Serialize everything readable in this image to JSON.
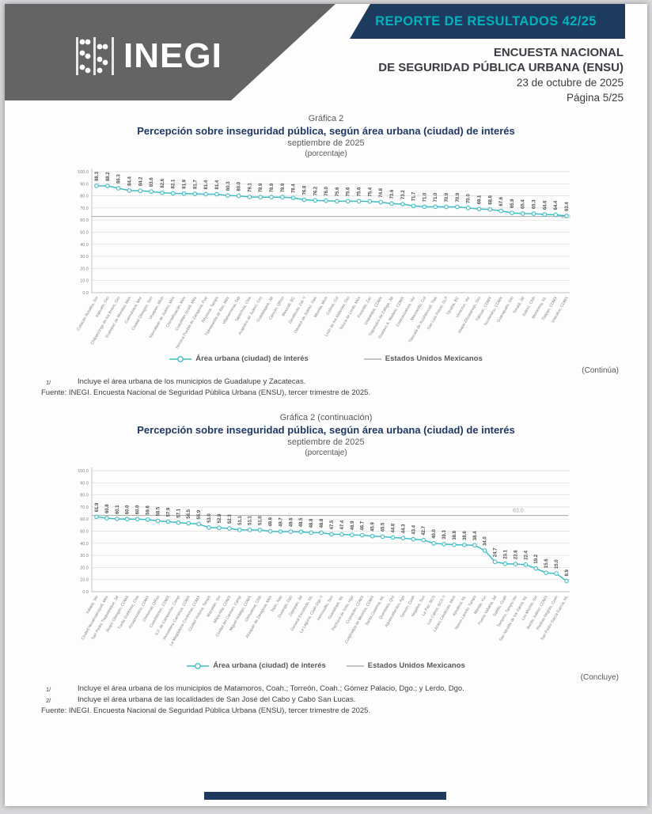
{
  "header": {
    "logo_text": "INEGI",
    "report_banner": "REPORTE DE RESULTADOS 42/25",
    "title_line1": "ENCUESTA NACIONAL",
    "title_line2": "DE SEGURIDAD PÚBLICA URBANA (ENSU)",
    "date": "23 de octubre de 2025",
    "page": "Página 5/25"
  },
  "colors": {
    "banner_bg": "#1d3a5f",
    "banner_text": "#00b2bc",
    "logo_bg": "#646467",
    "title_navy": "#1f3864",
    "series_teal": "#3fbdc5",
    "reference_gray": "#b0b0b0",
    "value_label": "#4d4d4d",
    "axis_label": "#7f7f7f"
  },
  "chart1": {
    "heading": "Gráfica 2",
    "title": "Percepción sobre inseguridad pública, según área urbana (ciudad) de interés",
    "subtitle": "septiembre de 2025",
    "unit_label": "(porcentaje)",
    "legend_series": "Área urbana (ciudad) de interés",
    "legend_reference": "Estados Unidos Mexicanos",
    "continuation_note": "(Continúa)",
    "footnotes": [
      {
        "mark": "1/",
        "text": "Incluye el área urbana de los municipios de Guadalupe y Zacatecas."
      }
    ],
    "source": "Fuente: INEGI. Encuesta Nacional de Seguridad Pública Urbana (ENSU), tercer trimestre de 2025."
  },
  "chart2": {
    "heading": "Gráfica 2 (continuación)",
    "title": "Percepción sobre inseguridad pública, según área urbana (ciudad) de interés",
    "subtitle": "septiembre de 2025",
    "unit_label": "(porcentaje)",
    "legend_series": "Área urbana (ciudad) de interés",
    "legend_reference": "Estados Unidos Mexicanos",
    "continuation_note": "(Concluye)",
    "footnotes": [
      {
        "mark": "1/",
        "text": "Incluye el área urbana de los municipios de Matamoros, Coah.; Torreón, Coah.; Gómez Palacio, Dgo.; y Lerdo, Dgo."
      },
      {
        "mark": "2/",
        "text": "Incluye el área urbana de las localidades de San José del Cabo y Cabo San Lucas."
      }
    ],
    "source": "Fuente: INEGI. Encuesta Nacional de Seguridad Pública Urbana (ENSU), tercer trimestre de 2025."
  },
  "chart_data": [
    {
      "type": "line",
      "title": "Percepción sobre inseguridad pública, según área urbana (ciudad) de interés — septiembre de 2025 (porcentaje), parte 1",
      "ylim": [
        0,
        100
      ],
      "ytick_step": 10,
      "grid": true,
      "legend_position": "bottom",
      "reference": {
        "label": "Estados Unidos Mexicanos",
        "value": 63.0
      },
      "categories": [
        "Culiacán Rosales, Sin",
        "Irapuato, Gto",
        "Chilpancingo de los Bravo, Gro",
        "Ecatepec de Morelos, Méx",
        "Cuernavaca, Mor",
        "Ciudad Obregón, Son",
        "Uruapan, Mich",
        "Naucalpan de Juárez, Méx",
        "Chimalhuacán, Méx",
        "Cuautitlán Izcalli, Méx",
        "Heroica Puebla de Zaragoza, Pue",
        "Reynosa, Tamps",
        "Tlalnepantla de Baz, Méx",
        "Villahermosa, Tab",
        "Tapachula, Chis",
        "Acapulco de Juárez, Gro",
        "Guadalajara, Jal",
        "Cancún, QRoo",
        "Mexicali, BC",
        "Zacatecas, Zac ¹/",
        "Oaxaca de Juárez, Oax",
        "Morelia, Mich",
        "Colima, Col",
        "León de los Aldamas, Gto",
        "Toluca de Lerdo, Méx",
        "Fresnillo, Zac",
        "Iztapalapa, CDMX",
        "Tlajomulco de Zúñiga, Jal",
        "Gustavo A. Madero, CDMX",
        "Coatzacoalcos, Ver",
        "Manzanillo, Col",
        "Tlaxcala de Xicohténcatl, Tlax",
        "San Luis Potosí, SLP",
        "Tijuana, BC",
        "Veracruz, Ver",
        "Ixtapa-Zihuatanejo, Gro",
        "Tláhuac, CDMX",
        "Xochimilco, CDMX",
        "Guanajuato, Gto",
        "Tonalá, Jal",
        "Juárez, Chih",
        "Monterrey, NL",
        "Tlalpan, CDMX",
        "Iztacalco, CDMX"
      ],
      "values": [
        88.3,
        88.2,
        86.3,
        84.4,
        84.2,
        83.6,
        82.6,
        82.1,
        81.9,
        81.7,
        81.4,
        81.4,
        80.3,
        80.0,
        79.1,
        78.9,
        78.9,
        78.9,
        78.4,
        76.8,
        76.2,
        76.0,
        75.6,
        75.6,
        75.6,
        75.4,
        74.8,
        73.6,
        73.2,
        71.7,
        71.0,
        71.0,
        70.9,
        70.9,
        70.0,
        69.1,
        68.8,
        67.6,
        65.9,
        65.4,
        65.3,
        64.6,
        64.4,
        63.4
      ]
    },
    {
      "type": "line",
      "title": "Percepción sobre inseguridad pública, según área urbana (ciudad) de interés — septiembre de 2025 (porcentaje), parte 2",
      "ylim": [
        0,
        100
      ],
      "ytick_step": 10,
      "grid": true,
      "legend_position": "bottom",
      "reference": {
        "label": "Estados Unidos Mexicanos",
        "value": 63.0
      },
      "categories": [
        "Xalapa, Ver",
        "Ciudad Nezahualcóyotl, Méx",
        "San Pedro Tlaquepaque, Jal",
        "Álvaro Obregón, CDMX",
        "Tuxtla Gutiérrez, Chis",
        "Azcapotzalco, CDMX",
        "Chetumal, QRoo",
        "Cuauhtémoc, CDMX",
        "S.F. de Campeche, Camp",
        "Venustiano Carranza, CDMX",
        "La Magdalena Contreras, CDMX",
        "Ciudad Victoria, Tamps",
        "Mazatlán, Sin",
        "Milpa Alta, CDMX",
        "Ciudad del Carmen, Camp",
        "Miguel Hidalgo, CDMX",
        "Chihuahua, Chih",
        "Atizapán de Zaragoza, Méx",
        "Tepic, Nay",
        "Durango, Dgo",
        "Zapopan, Jal",
        "General Escobedo, NL",
        "La Laguna, Coah-Dgo ¹/",
        "Hermosillo, Son",
        "Guadalupe, NL",
        "Pachuca de Soto, Hgo",
        "Coyoacán, CDMX",
        "Cuajimalpa de Morelos, CDMX",
        "Santa Catarina, NL",
        "Querétaro, Qro",
        "Aguascalientes, Ags",
        "Torreón, Coah",
        "Nogales, Son",
        "La Paz, BCS",
        "Los Cabos, BCS ²/",
        "Lázaro Cárdenas, Mich",
        "Apodaca, NL",
        "Nuevo Laredo, Tamps",
        "Mérida, Yuc",
        "Puerto Vallarta, Jal",
        "Saltillo, Coah",
        "Tampico, Tamps-Ver",
        "San Nicolás de los Garza, NL",
        "Los Mochis, Sin",
        "Benito Juárez, CDMX",
        "Piedras Negras, Coah",
        "San Pedro Garza García, NL"
      ],
      "values": [
        61.9,
        60.8,
        60.1,
        60.0,
        60.0,
        59.6,
        58.5,
        57.9,
        57.1,
        56.5,
        55.9,
        53.0,
        52.8,
        52.3,
        51.1,
        51.1,
        51.0,
        49.9,
        49.7,
        49.6,
        49.5,
        48.8,
        48.8,
        47.5,
        47.4,
        46.9,
        46.7,
        45.9,
        45.5,
        44.8,
        44.3,
        43.4,
        42.7,
        40.0,
        39.3,
        38.8,
        38.6,
        38.4,
        34.0,
        24.7,
        23.1,
        22.8,
        22.4,
        19.2,
        15.6,
        15.0,
        8.9
      ]
    }
  ]
}
